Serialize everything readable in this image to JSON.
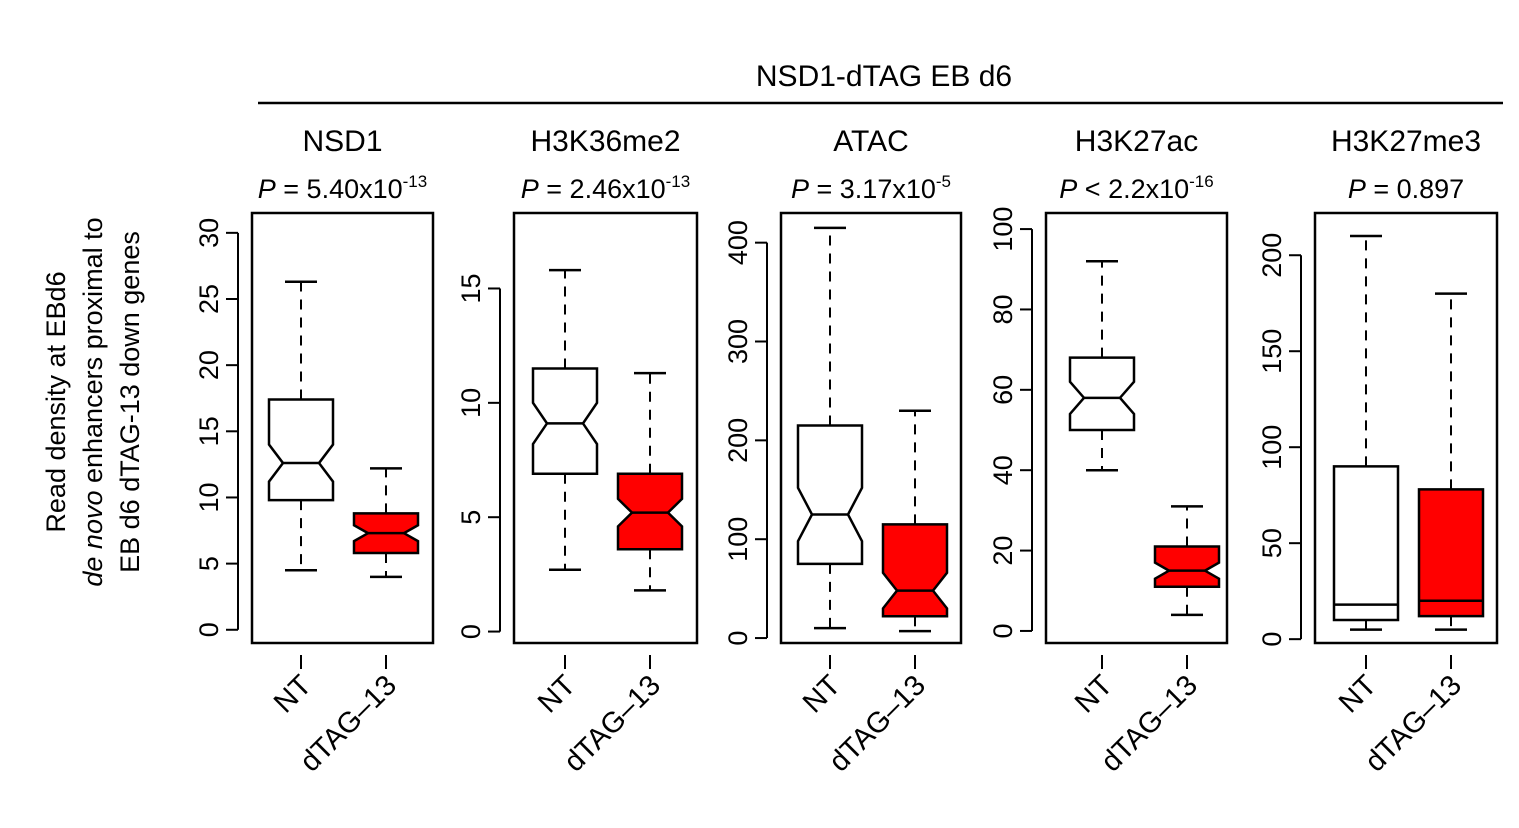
{
  "chart_data": {
    "type": "boxplot",
    "title": "NSD1-dTAG EB d6",
    "ylabel_lines": [
      "Read density at EBd6",
      "de novo enhancers proximal to",
      "EB d6 dTAG-13 down genes"
    ],
    "ylabel_italic_prefix": "de novo",
    "categories": [
      "NT",
      "dTAG–13"
    ],
    "colors": {
      "NT": "#ffffff",
      "dTAG-13": "#ff0000",
      "stroke": "#000000"
    },
    "panels": [
      {
        "title": "NSD1",
        "p_prefix": "P",
        "p_op": " = ",
        "p_mant": "5.40x10",
        "p_exp": "-13",
        "ylim": [
          -1,
          31.5
        ],
        "yticks": [
          "0",
          "5",
          "10",
          "15",
          "20",
          "25",
          "30"
        ],
        "boxes": [
          {
            "category": "NT",
            "whisker_low": 4.5,
            "q1": 9.8,
            "median": 12.6,
            "q3": 17.4,
            "whisker_high": 26.3,
            "notch_low": 11.2,
            "notch_high": 14.0
          },
          {
            "category": "dTAG–13",
            "whisker_low": 4.0,
            "q1": 5.8,
            "median": 7.3,
            "q3": 8.8,
            "whisker_high": 12.2,
            "notch_low": 6.7,
            "notch_high": 7.9
          }
        ]
      },
      {
        "title": "H3K36me2",
        "p_prefix": "P",
        "p_op": " = ",
        "p_mant": "2.46x10",
        "p_exp": "-13",
        "ylim": [
          -0.5,
          18.3
        ],
        "yticks": [
          "0",
          "5",
          "10",
          "15"
        ],
        "boxes": [
          {
            "category": "NT",
            "whisker_low": 2.7,
            "q1": 6.9,
            "median": 9.1,
            "q3": 11.5,
            "whisker_high": 15.8,
            "notch_low": 8.2,
            "notch_high": 10.0
          },
          {
            "category": "dTAG–13",
            "whisker_low": 1.8,
            "q1": 3.6,
            "median": 5.2,
            "q3": 6.9,
            "whisker_high": 11.3,
            "notch_low": 4.6,
            "notch_high": 5.8
          }
        ]
      },
      {
        "title": "ATAC",
        "p_prefix": "P",
        "p_op": " = ",
        "p_mant": "3.17x10",
        "p_exp": "-5",
        "ylim": [
          -5,
          430
        ],
        "yticks": [
          "0",
          "100",
          "200",
          "300",
          "400"
        ],
        "boxes": [
          {
            "category": "NT",
            "whisker_low": 10,
            "q1": 75,
            "median": 125,
            "q3": 215,
            "whisker_high": 415,
            "notch_low": 98,
            "notch_high": 152
          },
          {
            "category": "dTAG–13",
            "whisker_low": 7,
            "q1": 22,
            "median": 48,
            "q3": 115,
            "whisker_high": 230,
            "notch_low": 30,
            "notch_high": 66
          }
        ]
      },
      {
        "title": "H3K27ac",
        "p_prefix": "P",
        "p_op": " < ",
        "p_mant": "2.2x10",
        "p_exp": "-16",
        "ylim": [
          -3,
          104
        ],
        "yticks": [
          "0",
          "20",
          "40",
          "60",
          "80",
          "100"
        ],
        "boxes": [
          {
            "category": "NT",
            "whisker_low": 40,
            "q1": 50,
            "median": 58,
            "q3": 68,
            "whisker_high": 92,
            "notch_low": 54,
            "notch_high": 62
          },
          {
            "category": "dTAG–13",
            "whisker_low": 4,
            "q1": 11,
            "median": 15,
            "q3": 21,
            "whisker_high": 31,
            "notch_low": 13,
            "notch_high": 17
          }
        ]
      },
      {
        "title": "H3K27me3",
        "p_prefix": "P",
        "p_op": " = ",
        "p_mant": "0.897",
        "p_exp": "",
        "ylim": [
          -2,
          222
        ],
        "yticks": [
          "0",
          "50",
          "100",
          "150",
          "200"
        ],
        "boxes": [
          {
            "category": "NT",
            "whisker_low": 5,
            "q1": 10,
            "median": 18,
            "q3": 90,
            "whisker_high": 210,
            "notch_low": 18,
            "notch_high": 18
          },
          {
            "category": "dTAG–13",
            "whisker_low": 5,
            "q1": 12,
            "median": 20,
            "q3": 78,
            "whisker_high": 180,
            "notch_low": 20,
            "notch_high": 20
          }
        ]
      }
    ]
  }
}
